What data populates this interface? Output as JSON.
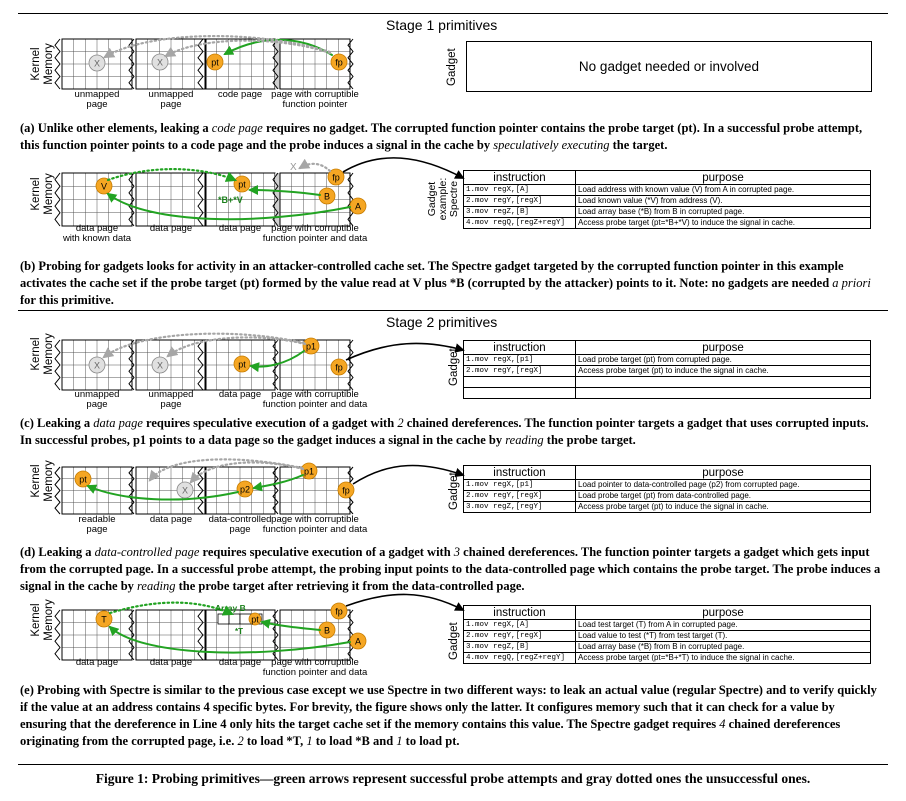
{
  "stage1_title": "Stage 1 primitives",
  "stage2_title": "Stage 2 primitives",
  "kernel_memory_label": "Kernel Memory",
  "gadget_label": "Gadget",
  "gadget_example_label": "Gadget example: Spectre",
  "markers": {
    "x": "X",
    "pt": "pt",
    "fp": "fp",
    "p1": "p1",
    "p2": "p2",
    "v": "V",
    "b": "B",
    "a": "A",
    "t": "T",
    "bv": "*B+*V",
    "array_b": "Array B",
    "t_star": "*T"
  },
  "panel_a": {
    "labels": [
      "unmapped\npage",
      "unmapped\npage",
      "code page",
      "page with corruptible\nfunction pointer"
    ],
    "no_gadget": "No gadget needed or involved",
    "caption": "(a) Unlike other elements, leaking a <i>code page</i> requires no gadget. The corrupted function pointer contains the probe target (pt). In a successful probe attempt, this function pointer points to a code page and the probe induces a signal in the cache by <i>speculatively executing</i> the target."
  },
  "panel_b": {
    "labels": [
      "data page\nwith known data",
      "data page",
      "data page",
      "page with corruptible\nfunction pointer and data"
    ],
    "header": [
      "instruction",
      "purpose"
    ],
    "rows": [
      [
        "1.mov regX,[A]",
        "Load address with known value (V) from A in corrupted page."
      ],
      [
        "2.mov regY,[regX]",
        "Load known value (*V) from address (V)."
      ],
      [
        "3.mov regZ,[B]",
        "Load array base (*B) from B in corrupted page."
      ],
      [
        "4.mov regQ,[regZ+regY]",
        "Access probe target (pt=*B+*V) to induce the signal in cache."
      ]
    ],
    "caption": "(b) Probing for gadgets looks for activity in an attacker-controlled cache set. The Spectre gadget targeted by the corrupted function pointer in this example activates the cache set if the probe target (pt) formed by the value read at V plus *B (corrupted by the attacker) points to it. Note: no gadgets are needed <i>a priori</i> for this primitive."
  },
  "panel_c": {
    "labels": [
      "unmapped\npage",
      "unmapped\npage",
      "data page",
      "page with corruptible\nfunction pointer and data"
    ],
    "header": [
      "instruction",
      "purpose"
    ],
    "rows": [
      [
        "1.mov regX,[p1]",
        "Load probe target (pt) from corrupted page."
      ],
      [
        "2.mov regY,[regX]",
        "Access probe target (pt) to induce the signal in cache."
      ],
      [
        "",
        ""
      ],
      [
        "",
        ""
      ]
    ],
    "caption": "(c) Leaking a <i>data page</i> requires speculative execution of a gadget with <i>2</i> chained dereferences. The function pointer targets a gadget that uses corrupted inputs. In successful probes, p1 points to a data page so the gadget induces a signal in the cache by <i>reading</i> the probe target."
  },
  "panel_d": {
    "labels": [
      "readable\npage",
      "data page",
      "data-controlled\npage",
      "page with corruptible\nfunction pointer and data"
    ],
    "header": [
      "instruction",
      "purpose"
    ],
    "rows": [
      [
        "1.mov regX,[p1]",
        "Load pointer to data-controlled page (p2) from corrupted page."
      ],
      [
        "2.mov regY,[regX]",
        "Load probe target (pt) from data-controlled page."
      ],
      [
        "3.mov regZ,[regY]",
        "Access probe target (pt) to induce the signal in cache."
      ]
    ],
    "caption": "(d) Leaking a <i>data-controlled page</i> requires speculative execution of a gadget with <i>3</i> chained dereferences. The function pointer targets a gadget which gets input from the corrupted page. In a successful probe attempt, the probing input points to the data-controlled page which contains the probe target. The probe induces a signal in the cache by <i>reading</i> the probe target after retrieving it from the data-controlled page."
  },
  "panel_e": {
    "labels": [
      "data page",
      "data page",
      "data page",
      "page with corruptible\nfunction pointer and data"
    ],
    "header": [
      "instruction",
      "purpose"
    ],
    "rows": [
      [
        "1.mov regX,[A]",
        "Load test target (T) from A in corrupted page."
      ],
      [
        "2.mov regY,[regX]",
        "Load value to test (*T) from test target (T)."
      ],
      [
        "3.mov regZ,[B]",
        "Load array base (*B) from B in corrupted page."
      ],
      [
        "4.mov regQ,[regZ+regY]",
        "Access probe target (pt=*B+*T) to induce the signal in cache."
      ]
    ],
    "caption": "(e) Probing with Spectre is similar to the previous case except we use Spectre in two different ways: to leak an actual value (regular Spectre) and to verify quickly if the value at an address contains 4 specific bytes. For brevity, the figure shows only the latter. It configures memory such that it can check for a value by ensuring that the dereference in Line 4 only hits the target cache set if the memory contains this value. The Spectre gadget requires <i>4</i> chained dereferences originating from the corrupted page, i.e. <i>2</i> to load *T, <i>1</i> to load *B and <i>1</i> to load pt."
  },
  "figure_caption": "Figure 1: Probing primitives—green arrows represent successful probe attempts and gray dotted ones the unsuccessful ones."
}
